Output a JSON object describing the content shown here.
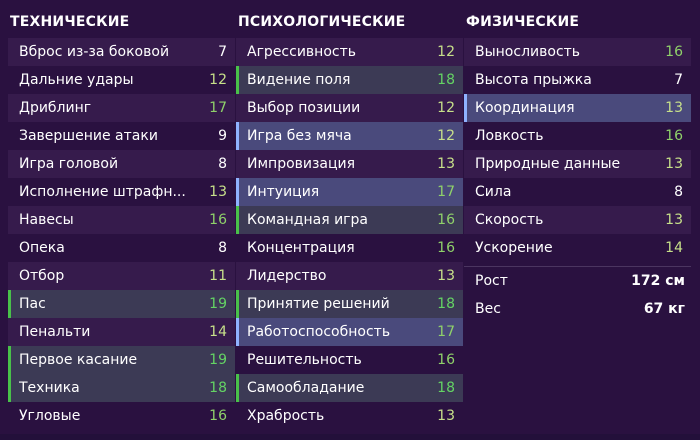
{
  "technical": {
    "title": "ТЕХНИЧЕСКИЕ",
    "items": [
      {
        "label": "Вброс из-за боковой",
        "value": "7",
        "tone": "white",
        "hl": ""
      },
      {
        "label": "Дальние удары",
        "value": "12",
        "tone": "lgreen",
        "hl": ""
      },
      {
        "label": "Дриблинг",
        "value": "17",
        "tone": "green",
        "hl": ""
      },
      {
        "label": "Завершение атаки",
        "value": "9",
        "tone": "white",
        "hl": ""
      },
      {
        "label": "Игра головой",
        "value": "8",
        "tone": "white",
        "hl": ""
      },
      {
        "label": "Исполнение штрафн...",
        "value": "13",
        "tone": "lgreen",
        "hl": ""
      },
      {
        "label": "Навесы",
        "value": "16",
        "tone": "green",
        "hl": ""
      },
      {
        "label": "Опека",
        "value": "8",
        "tone": "white",
        "hl": ""
      },
      {
        "label": "Отбор",
        "value": "11",
        "tone": "lgreen",
        "hl": ""
      },
      {
        "label": "Пас",
        "value": "19",
        "tone": "bright",
        "hl": "green"
      },
      {
        "label": "Пенальти",
        "value": "14",
        "tone": "lgreen",
        "hl": ""
      },
      {
        "label": "Первое касание",
        "value": "19",
        "tone": "bright",
        "hl": "green"
      },
      {
        "label": "Техника",
        "value": "18",
        "tone": "bright",
        "hl": "green"
      },
      {
        "label": "Угловые",
        "value": "16",
        "tone": "green",
        "hl": ""
      }
    ]
  },
  "mental": {
    "title": "ПСИХОЛОГИЧЕСКИЕ",
    "items": [
      {
        "label": "Агрессивность",
        "value": "12",
        "tone": "lgreen",
        "hl": ""
      },
      {
        "label": "Видение поля",
        "value": "18",
        "tone": "bright",
        "hl": "green"
      },
      {
        "label": "Выбор позиции",
        "value": "12",
        "tone": "lgreen",
        "hl": ""
      },
      {
        "label": "Игра без мяча",
        "value": "12",
        "tone": "lgreen",
        "hl": "blue"
      },
      {
        "label": "Импровизация",
        "value": "13",
        "tone": "lgreen",
        "hl": ""
      },
      {
        "label": "Интуиция",
        "value": "17",
        "tone": "green",
        "hl": "blue"
      },
      {
        "label": "Командная игра",
        "value": "16",
        "tone": "green",
        "hl": "green"
      },
      {
        "label": "Концентрация",
        "value": "16",
        "tone": "green",
        "hl": ""
      },
      {
        "label": "Лидерство",
        "value": "13",
        "tone": "lgreen",
        "hl": ""
      },
      {
        "label": "Принятие решений",
        "value": "18",
        "tone": "bright",
        "hl": "green"
      },
      {
        "label": "Работоспособность",
        "value": "17",
        "tone": "green",
        "hl": "blue"
      },
      {
        "label": "Решительность",
        "value": "16",
        "tone": "green",
        "hl": ""
      },
      {
        "label": "Самообладание",
        "value": "18",
        "tone": "bright",
        "hl": "green"
      },
      {
        "label": "Храбрость",
        "value": "13",
        "tone": "lgreen",
        "hl": ""
      }
    ]
  },
  "physical": {
    "title": "ФИЗИЧЕСКИЕ",
    "items": [
      {
        "label": "Выносливость",
        "value": "16",
        "tone": "green",
        "hl": ""
      },
      {
        "label": "Высота прыжка",
        "value": "7",
        "tone": "white",
        "hl": ""
      },
      {
        "label": "Координация",
        "value": "13",
        "tone": "lgreen",
        "hl": "blue"
      },
      {
        "label": "Ловкость",
        "value": "16",
        "tone": "green",
        "hl": ""
      },
      {
        "label": "Природные данные",
        "value": "13",
        "tone": "lgreen",
        "hl": ""
      },
      {
        "label": "Сила",
        "value": "8",
        "tone": "white",
        "hl": ""
      },
      {
        "label": "Скорость",
        "value": "13",
        "tone": "lgreen",
        "hl": ""
      },
      {
        "label": "Ускорение",
        "value": "14",
        "tone": "lgreen",
        "hl": ""
      }
    ],
    "height_label": "Рост",
    "height_value": "172 см",
    "weight_label": "Вес",
    "weight_value": "67 кг"
  },
  "colors": {
    "background": "#2a1140",
    "row_alt": "#361b4c",
    "highlight_green_bar": "#49c14a",
    "highlight_blue_bar": "#8fb2ff"
  }
}
